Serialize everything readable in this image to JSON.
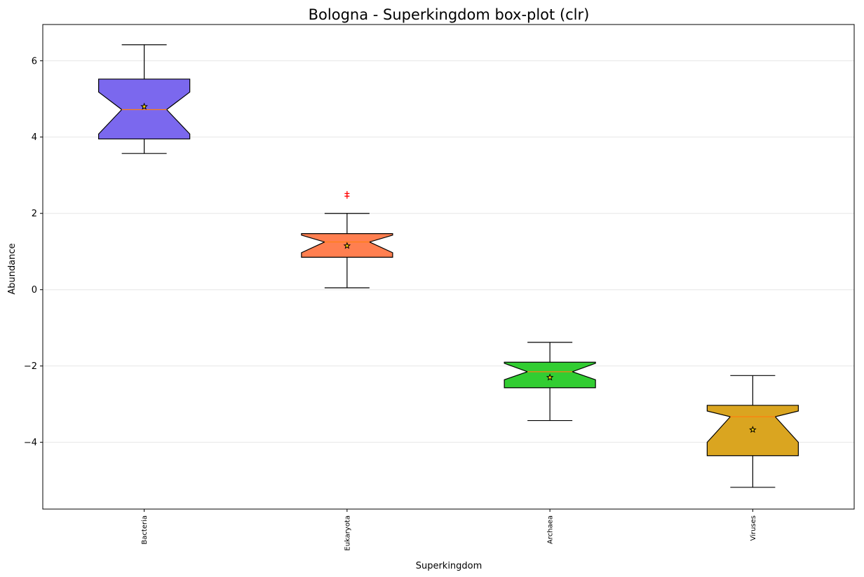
{
  "chart_data": {
    "type": "box",
    "title": "Bologna - Superkingdom box-plot (clr)",
    "xlabel": "Superkingdom",
    "ylabel": "Abundance",
    "ylim": [
      -5.75,
      6.95
    ],
    "yticks": [
      -4,
      -2,
      0,
      2,
      4,
      6
    ],
    "ytick_labels": [
      "−4",
      "−2",
      "0",
      "2",
      "4",
      "6"
    ],
    "grid": "horizontal",
    "notched": true,
    "colors": {
      "median_line": "#ff7f0e",
      "outlier": "#ff0000",
      "mean_marker_fill": "#ffd700",
      "grid": "#e6e6e6"
    },
    "categories": [
      "Bacteria",
      "Eukaryota",
      "Archaea",
      "Viruses"
    ],
    "boxes": [
      {
        "name": "Bacteria",
        "color": "#7b68ee",
        "whisker_low": 3.57,
        "q1": 3.95,
        "median": 4.72,
        "q3": 5.52,
        "whisker_high": 6.42,
        "notch_low": 4.08,
        "notch_high": 5.18,
        "mean": 4.8,
        "outliers": []
      },
      {
        "name": "Eukaryota",
        "color": "#ff7f50",
        "whisker_low": 0.05,
        "q1": 0.85,
        "median": 1.25,
        "q3": 1.47,
        "whisker_high": 2.0,
        "notch_low": 0.97,
        "notch_high": 1.43,
        "mean": 1.15,
        "outliers": [
          2.45,
          2.52
        ]
      },
      {
        "name": "Archaea",
        "color": "#32cd32",
        "whisker_low": -3.43,
        "q1": -2.57,
        "median": -2.15,
        "q3": -1.9,
        "whisker_high": -1.38,
        "notch_low": -2.36,
        "notch_high": -1.93,
        "mean": -2.3,
        "outliers": []
      },
      {
        "name": "Viruses",
        "color": "#daa520",
        "whisker_low": -5.18,
        "q1": -4.35,
        "median": -3.33,
        "q3": -3.03,
        "whisker_high": -2.25,
        "notch_low": -4.0,
        "notch_high": -3.18,
        "mean": -3.67,
        "outliers": []
      }
    ]
  }
}
